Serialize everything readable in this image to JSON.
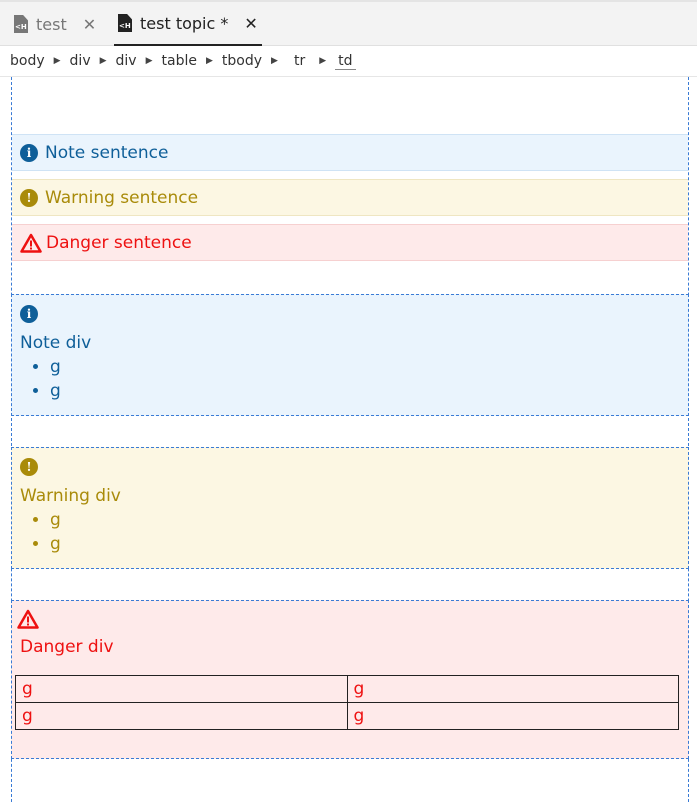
{
  "tabs": [
    {
      "label": "test",
      "icon": "file-code-icon",
      "close": "✕",
      "active": false
    },
    {
      "label": "test topic *",
      "icon": "file-code-icon",
      "close": "✕",
      "active": true
    }
  ],
  "breadcrumb": [
    "body",
    "div",
    "div",
    "table",
    "tbody",
    "tr",
    "td"
  ],
  "sentences": {
    "note": "Note sentence",
    "warning": "Warning sentence",
    "danger": "Danger sentence"
  },
  "note_div": {
    "title": "Note div",
    "items": [
      "g",
      "g"
    ]
  },
  "warning_div": {
    "title": "Warning div",
    "items": [
      "g",
      "g"
    ]
  },
  "danger_div": {
    "title": "Danger div",
    "table": [
      [
        "g",
        "g"
      ],
      [
        "g",
        "g"
      ]
    ]
  },
  "colors": {
    "note": "#0f5f99",
    "warning": "#a98b0a",
    "danger": "#ee1111",
    "guide": "#3a7bd5"
  }
}
